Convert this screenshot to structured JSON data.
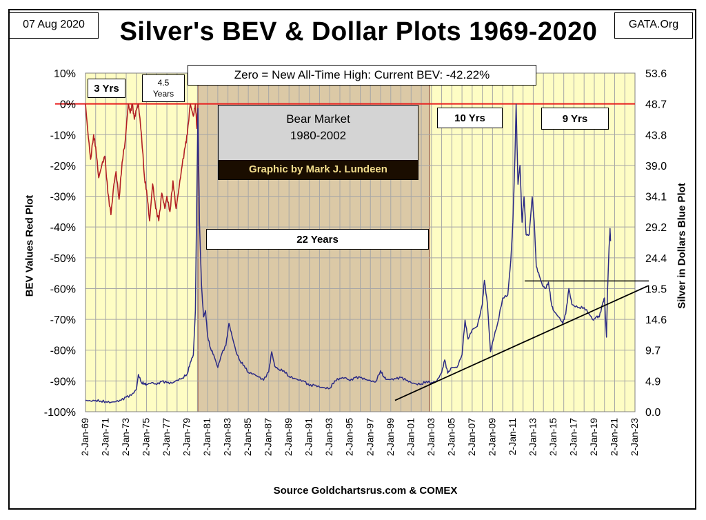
{
  "header": {
    "title": "Silver's BEV & Dollar Plots 1969-2020",
    "date": "07 Aug 2020",
    "site": "GATA.Org",
    "note": "Zero = New All-Time High: Current BEV: -42.22%"
  },
  "annotations": {
    "period_1": "3 Yrs",
    "period_2_line1": "4.5",
    "period_2_line2": "Years",
    "period_3": "22 Years",
    "period_4": "10 Yrs",
    "period_5": "9 Yrs",
    "bear_line1": "Bear Market",
    "bear_line2": "1980-2002",
    "credit": "Graphic by Mark J. Lundeen"
  },
  "source": "Source Goldchartsrus.com & COMEX",
  "colors": {
    "plot_bg": "#fefdc4",
    "bear_bg": "#dbc9a6",
    "grid": "#a6a6a6",
    "bev_line": "#b21e24",
    "price_line": "#2b2a85",
    "zero_line": "#e81c1c",
    "trend_line": "#000000"
  },
  "chart_data": {
    "type": "line",
    "title": "Silver's BEV & Dollar Plots 1969-2020",
    "xlabel": "",
    "ylabel_left": "BEV Values  Red Plot",
    "ylabel_right": "Silver in Dollars  Blue Plot",
    "xlim": [
      "1969-01-02",
      "2023-01-02"
    ],
    "x_tick_labels": [
      "2-Jan-69",
      "2-Jan-71",
      "2-Jan-73",
      "2-Jan-75",
      "2-Jan-77",
      "2-Jan-79",
      "2-Jan-81",
      "2-Jan-83",
      "2-Jan-85",
      "2-Jan-87",
      "2-Jan-89",
      "2-Jan-91",
      "2-Jan-93",
      "2-Jan-95",
      "2-Jan-97",
      "2-Jan-99",
      "2-Jan-01",
      "2-Jan-03",
      "2-Jan-05",
      "2-Jan-07",
      "2-Jan-09",
      "2-Jan-11",
      "2-Jan-13",
      "2-Jan-15",
      "2-Jan-17",
      "2-Jan-19",
      "2-Jan-21",
      "2-Jan-23"
    ],
    "y_left_ticks": [
      "10%",
      "0%",
      "-10%",
      "-20%",
      "-30%",
      "-40%",
      "-50%",
      "-60%",
      "-70%",
      "-80%",
      "-90%",
      "-100%"
    ],
    "y_left_range": [
      -100,
      10
    ],
    "y_right_ticks": [
      "53.6",
      "48.7",
      "43.8",
      "39.0",
      "34.1",
      "29.2",
      "24.4",
      "19.5",
      "14.6",
      "9.7",
      "4.9",
      "0.0"
    ],
    "y_right_range": [
      0,
      53.6
    ],
    "grid": true,
    "shaded_regions": [
      {
        "name": "Bear Market",
        "x": [
          "1980-01-18",
          "2002-11-01"
        ]
      }
    ],
    "reference_lines": [
      {
        "value": 0,
        "axis": "left"
      },
      {
        "value": 20.7,
        "axis": "right",
        "x": [
          "2012-03-01",
          "2023-01-01"
        ]
      }
    ],
    "trend_line": {
      "x": [
        "1999-06-01",
        "2022-12-01"
      ],
      "y": [
        1.8,
        19.7
      ],
      "axis": "right"
    },
    "series": [
      {
        "name": "BEV Values",
        "axis": "left",
        "x": [
          1969.0,
          1969.2,
          1969.5,
          1969.8,
          1970.0,
          1970.3,
          1970.6,
          1970.9,
          1971.2,
          1971.5,
          1971.8,
          1972.0,
          1972.3,
          1972.6,
          1972.9,
          1973.2,
          1973.4,
          1973.6,
          1973.8,
          1974.0,
          1974.2,
          1974.5,
          1974.8,
          1975.0,
          1975.3,
          1975.6,
          1975.9,
          1976.2,
          1976.5,
          1976.8,
          1977.0,
          1977.3,
          1977.6,
          1977.9,
          1978.2,
          1978.5,
          1978.8,
          1979.0,
          1979.3,
          1979.6,
          1979.8,
          1979.95,
          1980.05
        ],
        "y": [
          0,
          -8,
          -18,
          -10,
          -14,
          -24,
          -20,
          -17,
          -29,
          -36,
          -26,
          -22,
          -31,
          -19,
          -12,
          0,
          -3,
          0,
          -5,
          -2,
          0,
          -10,
          -24,
          -28,
          -38,
          -26,
          -34,
          -38,
          -29,
          -34,
          -30,
          -35,
          -25,
          -34,
          -27,
          -20,
          -14,
          -10,
          0,
          -4,
          0,
          -8,
          0
        ]
      },
      {
        "name": "Silver Price",
        "axis": "right",
        "x": [
          1969.0,
          1969.5,
          1970.0,
          1970.5,
          1971.0,
          1971.5,
          1972.0,
          1972.5,
          1973.0,
          1973.5,
          1974.0,
          1974.2,
          1974.5,
          1974.8,
          1975.0,
          1975.5,
          1976.0,
          1976.5,
          1977.0,
          1977.5,
          1978.0,
          1978.5,
          1979.0,
          1979.3,
          1979.6,
          1979.8,
          1980.05,
          1980.2,
          1980.4,
          1980.6,
          1980.8,
          1981.0,
          1981.3,
          1981.6,
          1982.0,
          1982.4,
          1982.8,
          1983.1,
          1983.4,
          1983.8,
          1984.2,
          1984.6,
          1985.0,
          1985.5,
          1986.0,
          1986.5,
          1987.0,
          1987.3,
          1987.6,
          1988.0,
          1988.5,
          1989.0,
          1989.5,
          1990.0,
          1990.5,
          1991.0,
          1991.5,
          1992.0,
          1992.5,
          1993.0,
          1993.5,
          1994.0,
          1994.5,
          1995.0,
          1995.5,
          1996.0,
          1996.5,
          1997.0,
          1997.5,
          1998.0,
          1998.3,
          1998.6,
          1999.0,
          1999.5,
          2000.0,
          2000.5,
          2001.0,
          2001.5,
          2002.0,
          2002.5,
          2003.0,
          2003.5,
          2004.0,
          2004.3,
          2004.6,
          2005.0,
          2005.5,
          2006.0,
          2006.3,
          2006.6,
          2007.0,
          2007.5,
          2008.0,
          2008.2,
          2008.5,
          2008.8,
          2009.0,
          2009.5,
          2010.0,
          2010.5,
          2010.8,
          2011.0,
          2011.2,
          2011.32,
          2011.5,
          2011.7,
          2011.9,
          2012.1,
          2012.3,
          2012.6,
          2012.9,
          2013.1,
          2013.3,
          2013.6,
          2013.9,
          2014.2,
          2014.5,
          2014.8,
          2015.0,
          2015.5,
          2015.9,
          2016.2,
          2016.5,
          2016.8,
          2017.0,
          2017.5,
          2018.0,
          2018.5,
          2018.9,
          2019.2,
          2019.5,
          2019.8,
          2020.0,
          2020.2,
          2020.3,
          2020.45,
          2020.55,
          2020.6
        ],
        "y": [
          1.8,
          1.7,
          1.8,
          1.7,
          1.6,
          1.5,
          1.6,
          1.8,
          2.3,
          2.6,
          3.5,
          5.9,
          4.6,
          4.5,
          4.3,
          4.6,
          4.3,
          4.8,
          4.6,
          4.5,
          5.0,
          5.3,
          6.0,
          7.8,
          9.0,
          16.0,
          48.0,
          30.0,
          20.0,
          15.0,
          16.0,
          12.0,
          10.0,
          9.0,
          7.0,
          9.2,
          10.5,
          14.0,
          12.0,
          9.5,
          8.0,
          7.3,
          6.2,
          6.0,
          5.5,
          5.0,
          6.3,
          9.5,
          7.2,
          6.7,
          6.5,
          5.6,
          5.3,
          5.0,
          4.8,
          4.1,
          4.2,
          3.9,
          3.8,
          3.7,
          4.9,
          5.3,
          5.4,
          4.9,
          5.4,
          5.4,
          5.1,
          4.9,
          4.7,
          6.5,
          5.6,
          5.1,
          5.1,
          5.2,
          5.4,
          5.0,
          4.6,
          4.4,
          4.4,
          4.8,
          4.6,
          4.8,
          6.2,
          8.2,
          6.1,
          7.0,
          7.0,
          9.0,
          14.5,
          11.5,
          13.0,
          13.5,
          17.0,
          20.8,
          17.0,
          9.5,
          11.0,
          14.0,
          18.0,
          18.5,
          24.0,
          30.0,
          40.0,
          48.7,
          36.0,
          39.0,
          30.0,
          34.0,
          28.0,
          28.0,
          34.0,
          30.0,
          23.0,
          21.5,
          20.0,
          19.5,
          20.5,
          17.0,
          16.0,
          15.0,
          14.0,
          15.5,
          19.5,
          17.0,
          16.8,
          16.5,
          16.5,
          15.5,
          14.5,
          15.0,
          15.0,
          17.0,
          18.0,
          11.8,
          19.0,
          26.0,
          29.0,
          27.0
        ]
      }
    ]
  }
}
